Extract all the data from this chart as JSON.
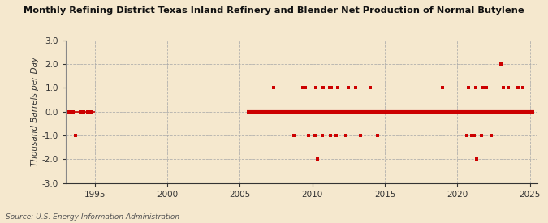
{
  "title": "Monthly Refining District Texas Inland Refinery and Blender Net Production of Normal Butylene",
  "ylabel": "Thousand Barrels per Day",
  "source": "Source: U.S. Energy Information Administration",
  "background_color": "#f5e8ce",
  "plot_bg_color": "#f5e8ce",
  "ylim": [
    -3.0,
    3.0
  ],
  "xlim": [
    1993.0,
    2025.5
  ],
  "yticks": [
    -3.0,
    -2.0,
    -1.0,
    0.0,
    1.0,
    2.0,
    3.0
  ],
  "xticks": [
    1995,
    2000,
    2005,
    2010,
    2015,
    2020,
    2025
  ],
  "line_color": "#cc0000",
  "marker_color": "#cc0000",
  "data_points": [
    [
      1993.17,
      0.0
    ],
    [
      1993.33,
      0.0
    ],
    [
      1993.5,
      0.0
    ],
    [
      1993.67,
      -1.0
    ],
    [
      1994.0,
      0.0
    ],
    [
      1994.25,
      0.0
    ],
    [
      1994.5,
      0.0
    ],
    [
      1994.75,
      0.0
    ],
    [
      2006.0,
      0.0
    ],
    [
      2006.17,
      0.0
    ],
    [
      2006.33,
      0.0
    ],
    [
      2006.5,
      0.0
    ],
    [
      2006.67,
      0.0
    ],
    [
      2006.83,
      0.0
    ],
    [
      2007.0,
      0.0
    ],
    [
      2007.17,
      0.0
    ],
    [
      2007.33,
      1.0
    ],
    [
      2007.5,
      0.0
    ],
    [
      2007.67,
      0.0
    ],
    [
      2007.83,
      0.0
    ],
    [
      2008.0,
      0.0
    ],
    [
      2008.17,
      0.0
    ],
    [
      2008.33,
      0.0
    ],
    [
      2008.5,
      0.0
    ],
    [
      2008.67,
      0.0
    ],
    [
      2008.75,
      -1.0
    ],
    [
      2008.83,
      0.0
    ],
    [
      2009.0,
      0.0
    ],
    [
      2009.17,
      0.0
    ],
    [
      2009.33,
      1.0
    ],
    [
      2009.5,
      1.0
    ],
    [
      2009.67,
      0.0
    ],
    [
      2009.75,
      -1.0
    ],
    [
      2009.83,
      0.0
    ],
    [
      2010.0,
      0.0
    ],
    [
      2010.17,
      -1.0
    ],
    [
      2010.25,
      1.0
    ],
    [
      2010.33,
      -2.0
    ],
    [
      2010.5,
      0.0
    ],
    [
      2010.67,
      -1.0
    ],
    [
      2010.75,
      1.0
    ],
    [
      2010.83,
      0.0
    ],
    [
      2011.0,
      0.0
    ],
    [
      2011.17,
      1.0
    ],
    [
      2011.25,
      -1.0
    ],
    [
      2011.33,
      1.0
    ],
    [
      2011.5,
      0.0
    ],
    [
      2011.67,
      -1.0
    ],
    [
      2011.75,
      1.0
    ],
    [
      2011.83,
      0.0
    ],
    [
      2012.0,
      0.0
    ],
    [
      2012.17,
      0.0
    ],
    [
      2012.33,
      -1.0
    ],
    [
      2012.5,
      1.0
    ],
    [
      2012.67,
      0.0
    ],
    [
      2012.83,
      0.0
    ],
    [
      2013.0,
      1.0
    ],
    [
      2013.17,
      0.0
    ],
    [
      2013.33,
      -1.0
    ],
    [
      2013.5,
      0.0
    ],
    [
      2013.67,
      0.0
    ],
    [
      2013.83,
      0.0
    ],
    [
      2014.0,
      1.0
    ],
    [
      2014.17,
      0.0
    ],
    [
      2014.33,
      0.0
    ],
    [
      2014.5,
      -1.0
    ],
    [
      2014.67,
      0.0
    ],
    [
      2014.83,
      0.0
    ],
    [
      2015.0,
      0.0
    ],
    [
      2015.17,
      0.0
    ],
    [
      2015.33,
      0.0
    ],
    [
      2015.5,
      0.0
    ],
    [
      2015.67,
      0.0
    ],
    [
      2015.83,
      0.0
    ],
    [
      2016.0,
      0.0
    ],
    [
      2016.17,
      0.0
    ],
    [
      2016.33,
      0.0
    ],
    [
      2016.5,
      0.0
    ],
    [
      2016.67,
      0.0
    ],
    [
      2016.83,
      0.0
    ],
    [
      2017.0,
      0.0
    ],
    [
      2017.17,
      0.0
    ],
    [
      2017.33,
      0.0
    ],
    [
      2017.5,
      0.0
    ],
    [
      2017.67,
      0.0
    ],
    [
      2017.83,
      0.0
    ],
    [
      2018.0,
      0.0
    ],
    [
      2018.17,
      0.0
    ],
    [
      2018.33,
      0.0
    ],
    [
      2018.5,
      0.0
    ],
    [
      2018.67,
      0.0
    ],
    [
      2018.83,
      0.0
    ],
    [
      2019.0,
      1.0
    ],
    [
      2019.17,
      0.0
    ],
    [
      2019.33,
      0.0
    ],
    [
      2019.5,
      0.0
    ],
    [
      2019.67,
      0.0
    ],
    [
      2019.83,
      0.0
    ],
    [
      2020.0,
      0.0
    ],
    [
      2020.17,
      0.0
    ],
    [
      2020.33,
      0.0
    ],
    [
      2020.5,
      0.0
    ],
    [
      2020.67,
      -1.0
    ],
    [
      2020.75,
      1.0
    ],
    [
      2020.83,
      0.0
    ],
    [
      2021.0,
      -1.0
    ],
    [
      2021.17,
      -1.0
    ],
    [
      2021.25,
      1.0
    ],
    [
      2021.33,
      -2.0
    ],
    [
      2021.5,
      0.0
    ],
    [
      2021.67,
      -1.0
    ],
    [
      2021.75,
      1.0
    ],
    [
      2021.83,
      0.0
    ],
    [
      2022.0,
      1.0
    ],
    [
      2022.17,
      0.0
    ],
    [
      2022.33,
      -1.0
    ],
    [
      2022.5,
      0.0
    ],
    [
      2022.67,
      0.0
    ],
    [
      2022.83,
      0.0
    ],
    [
      2023.0,
      2.0
    ],
    [
      2023.17,
      1.0
    ],
    [
      2023.33,
      0.0
    ],
    [
      2023.5,
      1.0
    ],
    [
      2023.67,
      0.0
    ],
    [
      2023.83,
      0.0
    ],
    [
      2024.0,
      0.0
    ],
    [
      2024.17,
      1.0
    ],
    [
      2024.33,
      0.0
    ],
    [
      2024.5,
      1.0
    ],
    [
      2024.67,
      0.0
    ],
    [
      2024.75,
      0.0
    ]
  ],
  "zero_line_x_start": 2005.5,
  "zero_line_x_end": 2025.3,
  "early_zero_x_start": 1993.0,
  "early_zero_x_end": 1995.0
}
